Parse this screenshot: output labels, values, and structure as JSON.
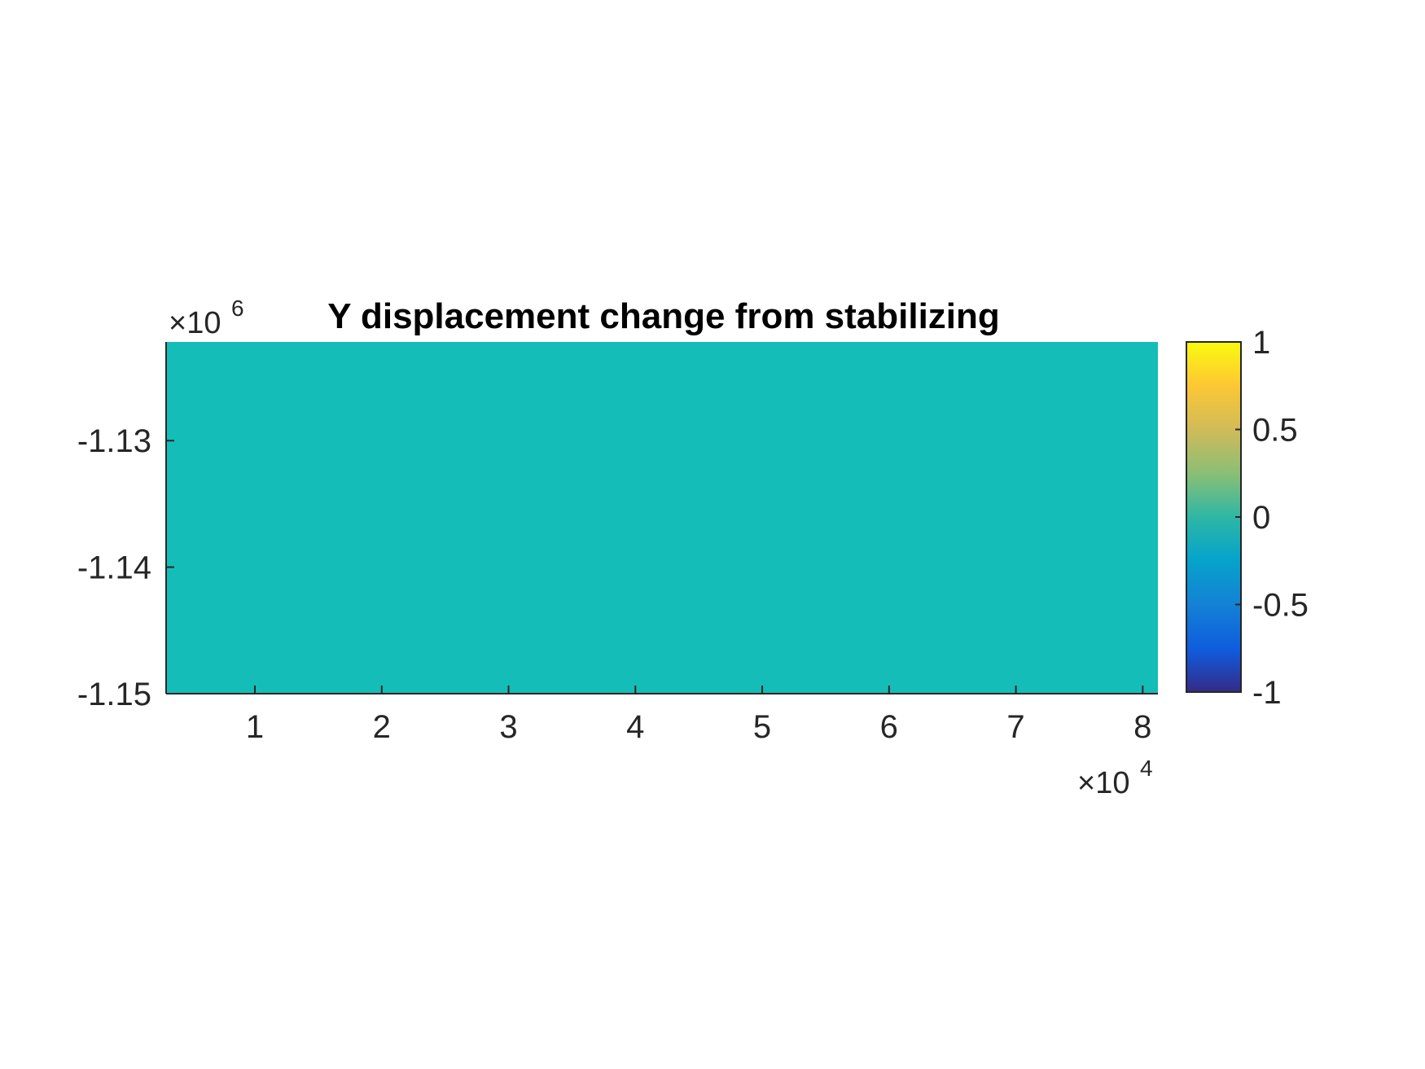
{
  "chart_data": {
    "type": "heatmap",
    "title": "Y displacement change from stabilizing",
    "xlabel": "",
    "ylabel": "",
    "x_ticks": [
      "1",
      "2",
      "3",
      "4",
      "5",
      "6",
      "7",
      "8"
    ],
    "x_tick_values": [
      1,
      2,
      3,
      4,
      5,
      6,
      7,
      8
    ],
    "x_multiplier": {
      "base": "10",
      "exponent": "4"
    },
    "xlim": [
      0.3,
      8.12
    ],
    "y_ticks": [
      "-1.13",
      "-1.14",
      "-1.15"
    ],
    "y_tick_values": [
      -1.13,
      -1.14,
      -1.15
    ],
    "y_multiplier": {
      "base": "10",
      "exponent": "6"
    },
    "ylim": [
      -1.15,
      -1.1222
    ],
    "field_value": 0,
    "grid": false,
    "colorbar": {
      "colormap": "parula",
      "clim": [
        -1,
        1
      ],
      "ticks": [
        "1",
        "0.5",
        "0",
        "-0.5",
        "-1"
      ],
      "tick_values": [
        1,
        0.5,
        0,
        -0.5,
        -1
      ],
      "location": "right"
    },
    "colors": {
      "field": "#14bdb8",
      "axis": "#262626"
    }
  }
}
